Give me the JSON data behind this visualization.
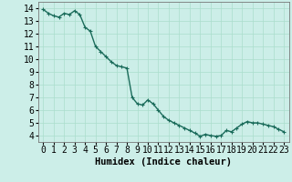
{
  "xlabel": "Humidex (Indice chaleur)",
  "background_color": "#cceee8",
  "line_color": "#1a6b5a",
  "grid_color": "#aaddcc",
  "x_values": [
    0,
    0.5,
    1,
    1.5,
    2,
    2.5,
    3,
    3.5,
    4,
    4.5,
    5,
    5.5,
    6,
    6.5,
    7,
    7.5,
    8,
    8.5,
    9,
    9.5,
    10,
    10.5,
    11,
    11.5,
    12,
    12.5,
    13,
    13.5,
    14,
    14.5,
    15,
    15.5,
    16,
    16.5,
    17,
    17.5,
    18,
    18.5,
    19,
    19.5,
    20,
    20.5,
    21,
    21.5,
    22,
    22.5,
    23
  ],
  "y_values": [
    13.9,
    13.6,
    13.4,
    13.3,
    13.6,
    13.5,
    13.8,
    13.5,
    12.5,
    12.2,
    11.0,
    10.6,
    10.2,
    9.8,
    9.5,
    9.4,
    9.3,
    7.0,
    6.5,
    6.4,
    6.8,
    6.5,
    6.0,
    5.5,
    5.2,
    5.0,
    4.8,
    4.6,
    4.4,
    4.2,
    3.95,
    4.1,
    4.0,
    3.95,
    4.0,
    4.4,
    4.3,
    4.6,
    4.9,
    5.1,
    5.0,
    5.0,
    4.9,
    4.8,
    4.7,
    4.5,
    4.3
  ],
  "xlim": [
    -0.5,
    23.5
  ],
  "ylim": [
    3.5,
    14.5
  ],
  "yticks": [
    4,
    5,
    6,
    7,
    8,
    9,
    10,
    11,
    12,
    13,
    14
  ],
  "xticks": [
    0,
    1,
    2,
    3,
    4,
    5,
    6,
    7,
    8,
    9,
    10,
    11,
    12,
    13,
    14,
    15,
    16,
    17,
    18,
    19,
    20,
    21,
    22,
    23
  ],
  "marker": "+",
  "marker_size": 3,
  "line_width": 1.0,
  "tick_font_size": 7,
  "xlabel_font_size": 7.5
}
